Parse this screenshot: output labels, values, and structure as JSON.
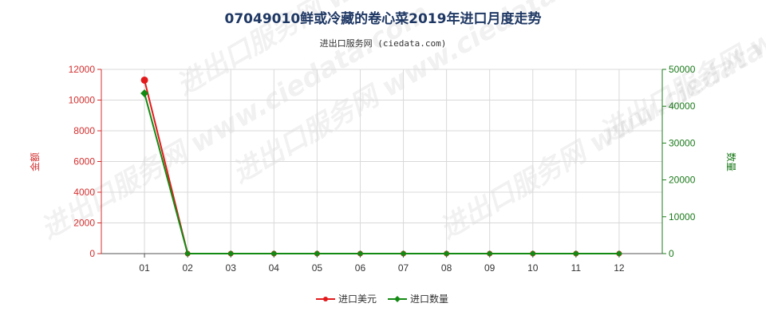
{
  "title": "07049010鲜或冷藏的卷心菜2019年进口月度走势",
  "subtitle": "进出口服务网 (ciedata.com)",
  "watermark": "进出口服务网 www.ciedata.com",
  "colors": {
    "left_axis": "#d32f2f",
    "right_axis": "#1b7a1b",
    "series_amount": "#e31a1c",
    "series_quantity": "#138a13",
    "grid": "#d9d9d9"
  },
  "chart_data": {
    "type": "line",
    "categories": [
      "01",
      "02",
      "03",
      "04",
      "05",
      "06",
      "07",
      "08",
      "09",
      "10",
      "11",
      "12"
    ],
    "left_axis": {
      "label": "金额",
      "ylim": [
        0,
        12000
      ],
      "ticks": [
        0,
        2000,
        4000,
        6000,
        8000,
        10000,
        12000
      ]
    },
    "right_axis": {
      "label": "数量",
      "ylim": [
        0,
        50000
      ],
      "ticks": [
        0,
        10000,
        20000,
        30000,
        40000,
        50000
      ]
    },
    "series": [
      {
        "name": "进口美元",
        "axis": "left",
        "marker": "circle",
        "values": [
          11300,
          0,
          0,
          0,
          0,
          0,
          0,
          0,
          0,
          0,
          0,
          0
        ]
      },
      {
        "name": "进口数量",
        "axis": "right",
        "marker": "diamond",
        "values": [
          43500,
          0,
          0,
          0,
          0,
          0,
          0,
          0,
          0,
          0,
          0,
          0
        ]
      }
    ],
    "grid": true,
    "legend": "bottom-center"
  }
}
